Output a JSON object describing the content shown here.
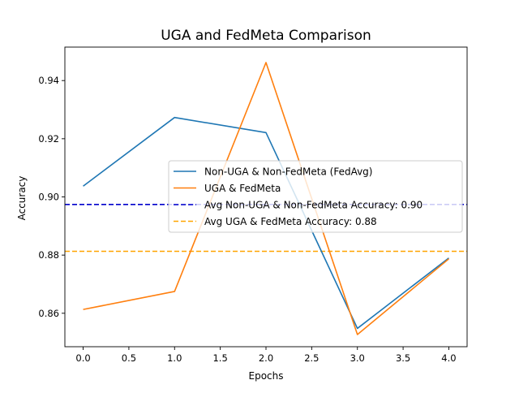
{
  "chart_data": {
    "type": "line",
    "title": "UGA and FedMeta Comparison",
    "xlabel": "Epochs",
    "ylabel": "Accuracy",
    "xlim": [
      -0.2,
      4.2
    ],
    "ylim": [
      0.8485,
      0.9515
    ],
    "xticks": [
      0.0,
      0.5,
      1.0,
      1.5,
      2.0,
      2.5,
      3.0,
      3.5,
      4.0
    ],
    "xtick_labels": [
      "0.0",
      "0.5",
      "1.0",
      "1.5",
      "2.0",
      "2.5",
      "3.0",
      "3.5",
      "4.0"
    ],
    "yticks": [
      0.86,
      0.88,
      0.9,
      0.92,
      0.94
    ],
    "ytick_labels": [
      "0.86",
      "0.88",
      "0.90",
      "0.92",
      "0.94"
    ],
    "grid": false,
    "legend_position": "center-right",
    "x": [
      0,
      1,
      2,
      3,
      4
    ],
    "series": [
      {
        "name": "Non-UGA & Non-FedMeta (FedAvg)",
        "color": "#1f77b4",
        "style": "solid",
        "values": [
          0.9037,
          0.9273,
          0.9221,
          0.8548,
          0.879
        ]
      },
      {
        "name": "UGA & FedMeta",
        "color": "#ff7f0e",
        "style": "solid",
        "values": [
          0.8613,
          0.8675,
          0.9462,
          0.8527,
          0.8787
        ]
      }
    ],
    "reference_lines": [
      {
        "name": "Avg Non-UGA & Non-FedMeta Accuracy: 0.90",
        "color": "#0000cc",
        "style": "dashed",
        "y": 0.8974
      },
      {
        "name": "Avg UGA & FedMeta Accuracy: 0.88",
        "color": "#ffa500",
        "style": "dashed",
        "y": 0.8813
      }
    ]
  }
}
